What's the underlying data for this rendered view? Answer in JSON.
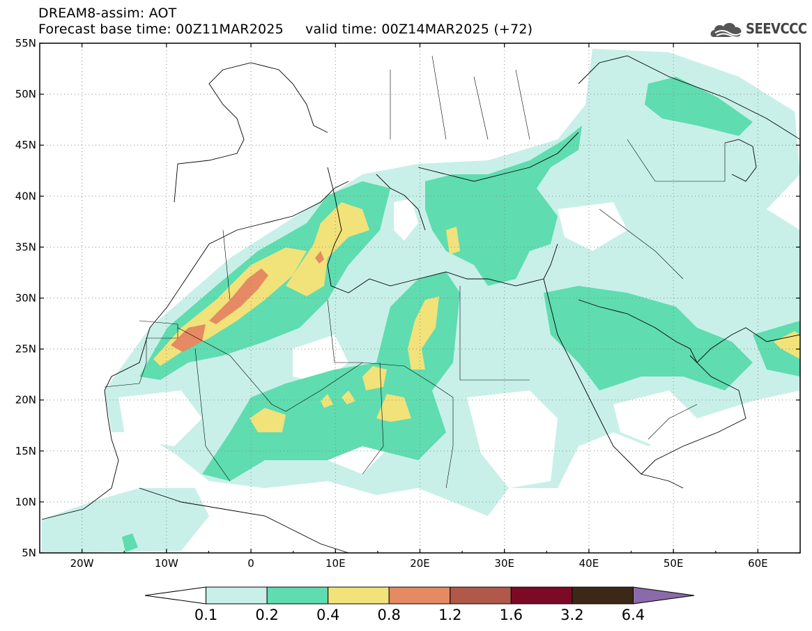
{
  "header": {
    "title_line1": "DREAM8-assim: AOT",
    "title_line2": "Forecast base time: 00Z11MAR2025     valid time: 00Z14MAR2025 (+72)"
  },
  "logo": {
    "text": "SEEVCCC",
    "icon": "cloud-icon"
  },
  "map": {
    "lon_range": [
      -25,
      65
    ],
    "lat_range": [
      5,
      55
    ],
    "lat_labels": [
      "55N",
      "50N",
      "45N",
      "40N",
      "35N",
      "30N",
      "25N",
      "20N",
      "15N",
      "10N",
      "5N"
    ],
    "lon_labels": [
      "20W",
      "10W",
      "0",
      "10E",
      "20E",
      "30E",
      "40E",
      "50E",
      "60E"
    ],
    "grid": "dotted"
  },
  "colorbar": {
    "labels": [
      "0.1",
      "0.2",
      "0.4",
      "0.8",
      "1.2",
      "1.6",
      "3.2",
      "6.4"
    ],
    "colors": [
      "#ffffff",
      "#c8f0e8",
      "#5fdcb0",
      "#f2e27a",
      "#e58a62",
      "#b0584a",
      "#7c0a26",
      "#3d2818",
      "#8a6aa8"
    ]
  },
  "legend_levels": {
    "l1": "#c8f0e8",
    "l2": "#5fdcb0",
    "l3": "#f2e27a",
    "l4": "#e58a62"
  }
}
